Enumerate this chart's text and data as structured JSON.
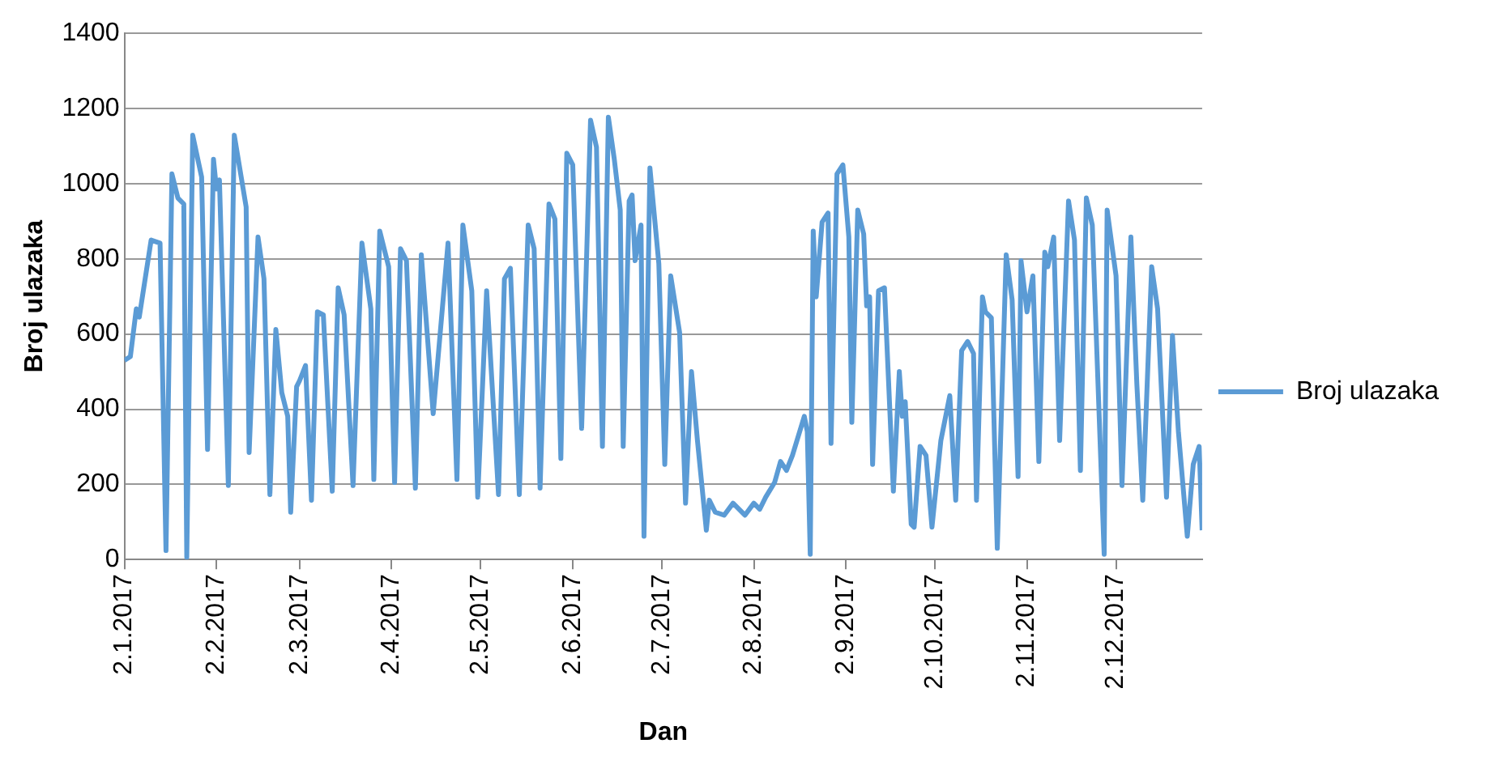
{
  "chart_data": {
    "type": "line",
    "xlabel": "Dan",
    "ylabel": "Broj ulazaka",
    "xlim": [
      "2017-01-02",
      "2017-12-31"
    ],
    "xticks": [
      {
        "value": "2017-01-02",
        "label": "2.1.2017"
      },
      {
        "value": "2017-02-02",
        "label": "2.2.2017"
      },
      {
        "value": "2017-03-02",
        "label": "2.3.2017"
      },
      {
        "value": "2017-04-02",
        "label": "2.4.2017"
      },
      {
        "value": "2017-05-02",
        "label": "2.5.2017"
      },
      {
        "value": "2017-06-02",
        "label": "2.6.2017"
      },
      {
        "value": "2017-07-02",
        "label": "2.7.2017"
      },
      {
        "value": "2017-08-02",
        "label": "2.8.2017"
      },
      {
        "value": "2017-09-02",
        "label": "2.9.2017"
      },
      {
        "value": "2017-10-02",
        "label": "2.10.2017"
      },
      {
        "value": "2017-11-02",
        "label": "2.11.2017"
      },
      {
        "value": "2017-12-02",
        "label": "2.12.2017"
      }
    ],
    "ylim": [
      0,
      1400
    ],
    "yticks": [
      0,
      200,
      400,
      600,
      800,
      1000,
      1200,
      1400
    ],
    "grid": "y",
    "legend": "right",
    "marker": "none",
    "line_style": "solid",
    "x": [
      "2017-01-02",
      "2017-01-04",
      "2017-01-06",
      "2017-01-07",
      "2017-01-11",
      "2017-01-14",
      "2017-01-16",
      "2017-01-18",
      "2017-01-20",
      "2017-01-22",
      "2017-01-23",
      "2017-01-25",
      "2017-01-28",
      "2017-01-30",
      "2017-02-01",
      "2017-02-02",
      "2017-02-03",
      "2017-02-06",
      "2017-02-08",
      "2017-02-12",
      "2017-02-13",
      "2017-02-16",
      "2017-02-18",
      "2017-02-20",
      "2017-02-22",
      "2017-02-24",
      "2017-02-26",
      "2017-02-27",
      "2017-03-01",
      "2017-03-02",
      "2017-03-04",
      "2017-03-06",
      "2017-03-08",
      "2017-03-10",
      "2017-03-13",
      "2017-03-15",
      "2017-03-17",
      "2017-03-20",
      "2017-03-23",
      "2017-03-26",
      "2017-03-27",
      "2017-03-29",
      "2017-04-01",
      "2017-04-03",
      "2017-04-05",
      "2017-04-07",
      "2017-04-10",
      "2017-04-12",
      "2017-04-16",
      "2017-04-21",
      "2017-04-24",
      "2017-04-26",
      "2017-04-29",
      "2017-05-01",
      "2017-05-04",
      "2017-05-08",
      "2017-05-10",
      "2017-05-12",
      "2017-05-15",
      "2017-05-18",
      "2017-05-20",
      "2017-05-22",
      "2017-05-25",
      "2017-05-27",
      "2017-05-29",
      "2017-05-31",
      "2017-06-02",
      "2017-06-05",
      "2017-06-08",
      "2017-06-10",
      "2017-06-12",
      "2017-06-14",
      "2017-06-16",
      "2017-06-18",
      "2017-06-19",
      "2017-06-21",
      "2017-06-22",
      "2017-06-23",
      "2017-06-25",
      "2017-06-26",
      "2017-06-28",
      "2017-07-01",
      "2017-07-03",
      "2017-07-05",
      "2017-07-08",
      "2017-07-10",
      "2017-07-12",
      "2017-07-14",
      "2017-07-17",
      "2017-07-18",
      "2017-07-20",
      "2017-07-23",
      "2017-07-26",
      "2017-07-30",
      "2017-08-02",
      "2017-08-04",
      "2017-08-06",
      "2017-08-09",
      "2017-08-11",
      "2017-08-13",
      "2017-08-15",
      "2017-08-19",
      "2017-08-20",
      "2017-08-21",
      "2017-08-22",
      "2017-08-23",
      "2017-08-25",
      "2017-08-27",
      "2017-08-28",
      "2017-08-30",
      "2017-09-01",
      "2017-09-03",
      "2017-09-04",
      "2017-09-06",
      "2017-09-08",
      "2017-09-09",
      "2017-09-10",
      "2017-09-11",
      "2017-09-13",
      "2017-09-15",
      "2017-09-18",
      "2017-09-20",
      "2017-09-21",
      "2017-09-22",
      "2017-09-24",
      "2017-09-25",
      "2017-09-27",
      "2017-09-29",
      "2017-10-01",
      "2017-10-04",
      "2017-10-07",
      "2017-10-09",
      "2017-10-11",
      "2017-10-13",
      "2017-10-15",
      "2017-10-16",
      "2017-10-18",
      "2017-10-19",
      "2017-10-21",
      "2017-10-23",
      "2017-10-26",
      "2017-10-28",
      "2017-10-30",
      "2017-10-31",
      "2017-11-02",
      "2017-11-04",
      "2017-11-06",
      "2017-11-08",
      "2017-11-09",
      "2017-11-11",
      "2017-11-13",
      "2017-11-16",
      "2017-11-18",
      "2017-11-20",
      "2017-11-22",
      "2017-11-24",
      "2017-11-28",
      "2017-11-29",
      "2017-12-02",
      "2017-12-04",
      "2017-12-07",
      "2017-12-09",
      "2017-12-11",
      "2017-12-14",
      "2017-12-16",
      "2017-12-19",
      "2017-12-21",
      "2017-12-23",
      "2017-12-26",
      "2017-12-28",
      "2017-12-30",
      "2017-12-31"
    ],
    "series": [
      {
        "name": "Broj ulazaka",
        "color": "#5b9bd5",
        "values": [
          530,
          540,
          667,
          645,
          850,
          842,
          24,
          1026,
          962,
          946,
          6,
          1129,
          1018,
          293,
          1065,
          986,
          1010,
          197,
          1129,
          938,
          285,
          858,
          747,
          173,
          612,
          444,
          381,
          126,
          460,
          476,
          516,
          158,
          659,
          651,
          182,
          723,
          651,
          197,
          842,
          667,
          213,
          874,
          779,
          205,
          827,
          795,
          190,
          811,
          388,
          842,
          213,
          890,
          715,
          166,
          715,
          173,
          747,
          775,
          173,
          890,
          827,
          190,
          946,
          906,
          269,
          1081,
          1050,
          349,
          1169,
          1097,
          301,
          1177,
          1065,
          930,
          301,
          954,
          970,
          795,
          890,
          62,
          1042,
          787,
          253,
          755,
          604,
          150,
          500,
          317,
          78,
          158,
          126,
          118,
          150,
          118,
          150,
          134,
          166,
          205,
          261,
          237,
          277,
          381,
          341,
          14,
          874,
          699,
          898,
          922,
          309,
          1026,
          1050,
          858,
          365,
          930,
          866,
          675,
          699,
          253,
          715,
          723,
          182,
          500,
          381,
          420,
          94,
          86,
          301,
          277,
          86,
          317,
          436,
          158,
          556,
          580,
          548,
          158,
          699,
          659,
          643,
          30,
          811,
          691,
          221,
          795,
          659,
          755,
          261,
          818,
          779,
          858,
          317,
          954,
          850,
          237,
          962,
          890,
          14,
          930,
          755,
          197,
          858,
          468,
          158,
          779,
          667,
          166,
          596,
          341,
          62,
          253,
          301,
          78
        ]
      }
    ]
  }
}
